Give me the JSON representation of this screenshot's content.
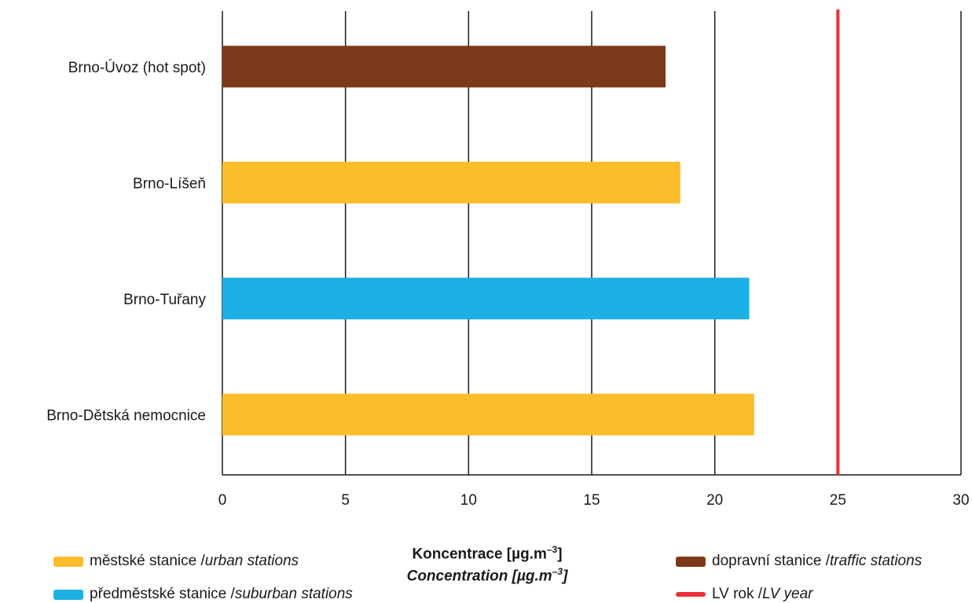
{
  "chart_data": {
    "type": "bar",
    "orientation": "horizontal",
    "categories": [
      "Brno-Úvoz (hot spot)",
      "Brno-Líšeň",
      "Brno-Tuřany",
      "Brno-Dětská nemocnice"
    ],
    "values": [
      18.0,
      18.6,
      21.4,
      21.6
    ],
    "bar_colors": [
      "#7b3a19",
      "#fbbd2a",
      "#1db0e4",
      "#fbbd2a"
    ],
    "xlim": [
      0,
      30
    ],
    "xticks": [
      "0",
      "5",
      "10",
      "15",
      "20",
      "25",
      "30"
    ],
    "grid": "vertical",
    "reference_line": {
      "value": 25,
      "color": "#e8303a"
    },
    "xlabel_line1": "Koncentrace [µg.m",
    "xlabel_line2": "Concentration [µg.m",
    "xlabel_exp": "–3",
    "xlabel_close": "]",
    "legend": [
      {
        "label": "městské stanice / ",
        "label_italic": "urban stations",
        "color": "#fbbd2a"
      },
      {
        "label": "předměstské stanice / ",
        "label_italic": "suburban stations",
        "color": "#1db0e4"
      },
      {
        "label": "dopravní stanice / ",
        "label_italic": "traffic stations",
        "color": "#7b3a19"
      },
      {
        "label": "LV rok / ",
        "label_italic": "LV year",
        "color": "#e8303a"
      }
    ]
  }
}
